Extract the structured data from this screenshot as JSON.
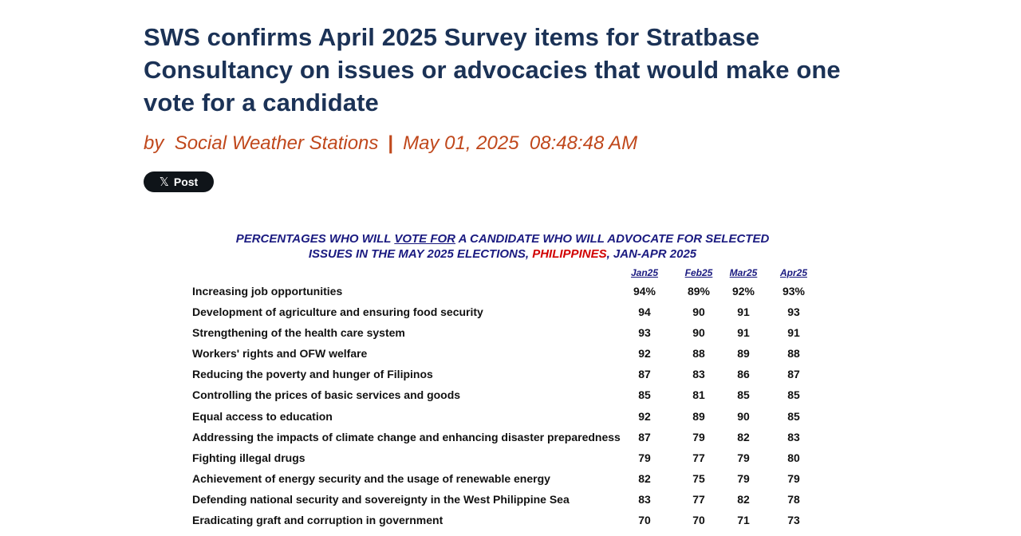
{
  "article": {
    "title": "SWS confirms April 2025 Survey items for Stratbase Consultancy on issues or advocacies that would make one vote for a candidate",
    "by_prefix": "by",
    "author": "Social Weather Stations",
    "separator": "|",
    "date": "May 01, 2025",
    "time": "08:48:48 AM",
    "share_button_label": "Post",
    "share_icon": "x-logo-icon"
  },
  "table": {
    "title_part1": "PERCENTAGES WHO WILL ",
    "title_vote_for": "VOTE FOR",
    "title_part2": " A CANDIDATE WHO WILL ADVOCATE FOR SELECTED",
    "title_line2_part1": "ISSUES IN THE MAY 2025 ELECTIONS, ",
    "title_philippines": "PHILIPPINES",
    "title_line2_part2": ", JAN-APR 2025",
    "columns": [
      "Jan25",
      "Feb25",
      "Mar25",
      "Apr25"
    ],
    "rows": [
      {
        "issue": "Increasing job opportunities",
        "values": [
          "94%",
          "89%",
          "92%",
          "93%"
        ]
      },
      {
        "issue": "Development of agriculture and ensuring food security",
        "values": [
          "94",
          "90",
          "91",
          "93"
        ]
      },
      {
        "issue": "Strengthening of the health care system",
        "values": [
          "93",
          "90",
          "91",
          "91"
        ]
      },
      {
        "issue": "Workers' rights and OFW welfare",
        "values": [
          "92",
          "88",
          "89",
          "88"
        ]
      },
      {
        "issue": "Reducing the poverty and hunger of Filipinos",
        "values": [
          "87",
          "83",
          "86",
          "87"
        ]
      },
      {
        "issue": "Controlling the prices of basic services and goods",
        "values": [
          "85",
          "81",
          "85",
          "85"
        ]
      },
      {
        "issue": "Equal access to education",
        "values": [
          "92",
          "89",
          "90",
          "85"
        ]
      },
      {
        "issue": "Addressing the impacts of climate change and enhancing disaster preparedness",
        "values": [
          "87",
          "79",
          "82",
          "83"
        ]
      },
      {
        "issue": "Fighting illegal drugs",
        "values": [
          "79",
          "77",
          "79",
          "80"
        ]
      },
      {
        "issue": "Achievement of energy security and the usage of renewable energy",
        "values": [
          "82",
          "75",
          "79",
          "79"
        ]
      },
      {
        "issue": "Defending national security and sovereignty in the West Philippine Sea",
        "values": [
          "83",
          "77",
          "82",
          "78"
        ]
      },
      {
        "issue": "Eradicating graft and corruption in government",
        "values": [
          "70",
          "70",
          "71",
          "73"
        ]
      }
    ]
  }
}
